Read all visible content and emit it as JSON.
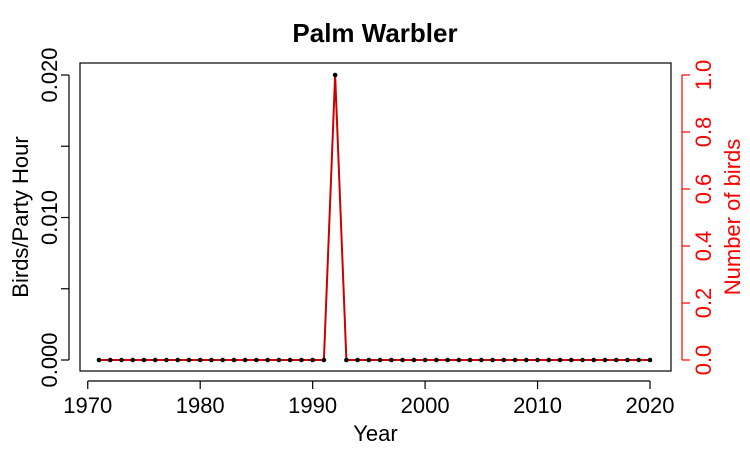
{
  "chart_data": {
    "type": "line",
    "title": "Palm Warbler",
    "xlabel": "Year",
    "ylabel_left": "Birds/Party Hour",
    "ylabel_right": "Number of birds",
    "xlim": [
      1971,
      2020
    ],
    "ylim_left": [
      0,
      0.02
    ],
    "ylim_right": [
      0,
      1.0
    ],
    "x_ticks": [
      1970,
      1980,
      1990,
      2000,
      2010,
      2020
    ],
    "x_tick_labels": [
      "1970",
      "1980",
      "1990",
      "2000",
      "2010",
      "2020"
    ],
    "y_left_ticks": [
      0.0,
      0.005,
      0.01,
      0.015,
      0.02
    ],
    "y_left_tick_labels": [
      "0.000",
      "",
      "0.010",
      "",
      "0.020"
    ],
    "y_right_ticks": [
      0.0,
      0.2,
      0.4,
      0.6,
      0.8,
      1.0
    ],
    "y_right_tick_labels": [
      "0.0",
      "0.2",
      "0.4",
      "0.6",
      "0.8",
      "1.0"
    ],
    "series": [
      {
        "name": "Birds/Party Hour",
        "axis": "left",
        "color": "#000000",
        "x": [
          1971,
          1972,
          1973,
          1974,
          1975,
          1976,
          1977,
          1978,
          1979,
          1980,
          1981,
          1982,
          1983,
          1984,
          1985,
          1986,
          1987,
          1988,
          1989,
          1990,
          1991,
          1992,
          1993,
          1994,
          1995,
          1996,
          1997,
          1998,
          1999,
          2000,
          2001,
          2002,
          2003,
          2004,
          2005,
          2006,
          2007,
          2008,
          2009,
          2010,
          2011,
          2012,
          2013,
          2014,
          2015,
          2016,
          2017,
          2018,
          2019,
          2020
        ],
        "values": [
          0,
          0,
          0,
          0,
          0,
          0,
          0,
          0,
          0,
          0,
          0,
          0,
          0,
          0,
          0,
          0,
          0,
          0,
          0,
          0,
          0,
          0.02,
          0,
          0,
          0,
          0,
          0,
          0,
          0,
          0,
          0,
          0,
          0,
          0,
          0,
          0,
          0,
          0,
          0,
          0,
          0,
          0,
          0,
          0,
          0,
          0,
          0,
          0,
          0,
          0
        ]
      },
      {
        "name": "Number of birds",
        "axis": "right",
        "color": "#cc0000",
        "x": [
          1971,
          1972,
          1973,
          1974,
          1975,
          1976,
          1977,
          1978,
          1979,
          1980,
          1981,
          1982,
          1983,
          1984,
          1985,
          1986,
          1987,
          1988,
          1989,
          1990,
          1991,
          1992,
          1993,
          1994,
          1995,
          1996,
          1997,
          1998,
          1999,
          2000,
          2001,
          2002,
          2003,
          2004,
          2005,
          2006,
          2007,
          2008,
          2009,
          2010,
          2011,
          2012,
          2013,
          2014,
          2015,
          2016,
          2017,
          2018,
          2019,
          2020
        ],
        "values": [
          0,
          0,
          0,
          0,
          0,
          0,
          0,
          0,
          0,
          0,
          0,
          0,
          0,
          0,
          0,
          0,
          0,
          0,
          0,
          0,
          0,
          1,
          0,
          0,
          0,
          0,
          0,
          0,
          0,
          0,
          0,
          0,
          0,
          0,
          0,
          0,
          0,
          0,
          0,
          0,
          0,
          0,
          0,
          0,
          0,
          0,
          0,
          0,
          0,
          0
        ]
      }
    ]
  }
}
